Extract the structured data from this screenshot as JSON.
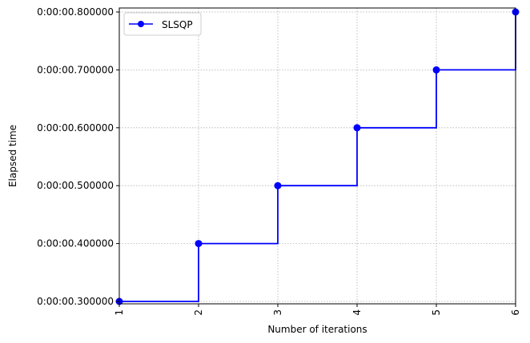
{
  "chart_data": {
    "type": "line",
    "drawstyle": "steps-post",
    "title": "",
    "xlabel": "Number of iterations",
    "ylabel": "Elapsed time",
    "x": [
      1,
      2,
      3,
      4,
      5,
      6
    ],
    "x_ticks": [
      "1",
      "2",
      "3",
      "4",
      "5",
      "6"
    ],
    "x_tick_rotation": "vertical",
    "xlim": [
      1,
      6
    ],
    "y_ticks": [
      {
        "value": 0.3,
        "label": "0:00:00.300000"
      },
      {
        "value": 0.4,
        "label": "0:00:00.400000"
      },
      {
        "value": 0.5,
        "label": "0:00:00.500000"
      },
      {
        "value": 0.6,
        "label": "0:00:00.600000"
      },
      {
        "value": 0.7,
        "label": "0:00:00.700000"
      },
      {
        "value": 0.8,
        "label": "0:00:00.800000"
      }
    ],
    "ylim": [
      0.3,
      0.8
    ],
    "grid": true,
    "grid_style": "dotted",
    "legend_position": "top-left",
    "series": [
      {
        "name": "SLSQP",
        "color": "#0000ff",
        "marker": "circle",
        "values": [
          0.3,
          0.4,
          0.5,
          0.6,
          0.7,
          0.8
        ]
      }
    ]
  }
}
